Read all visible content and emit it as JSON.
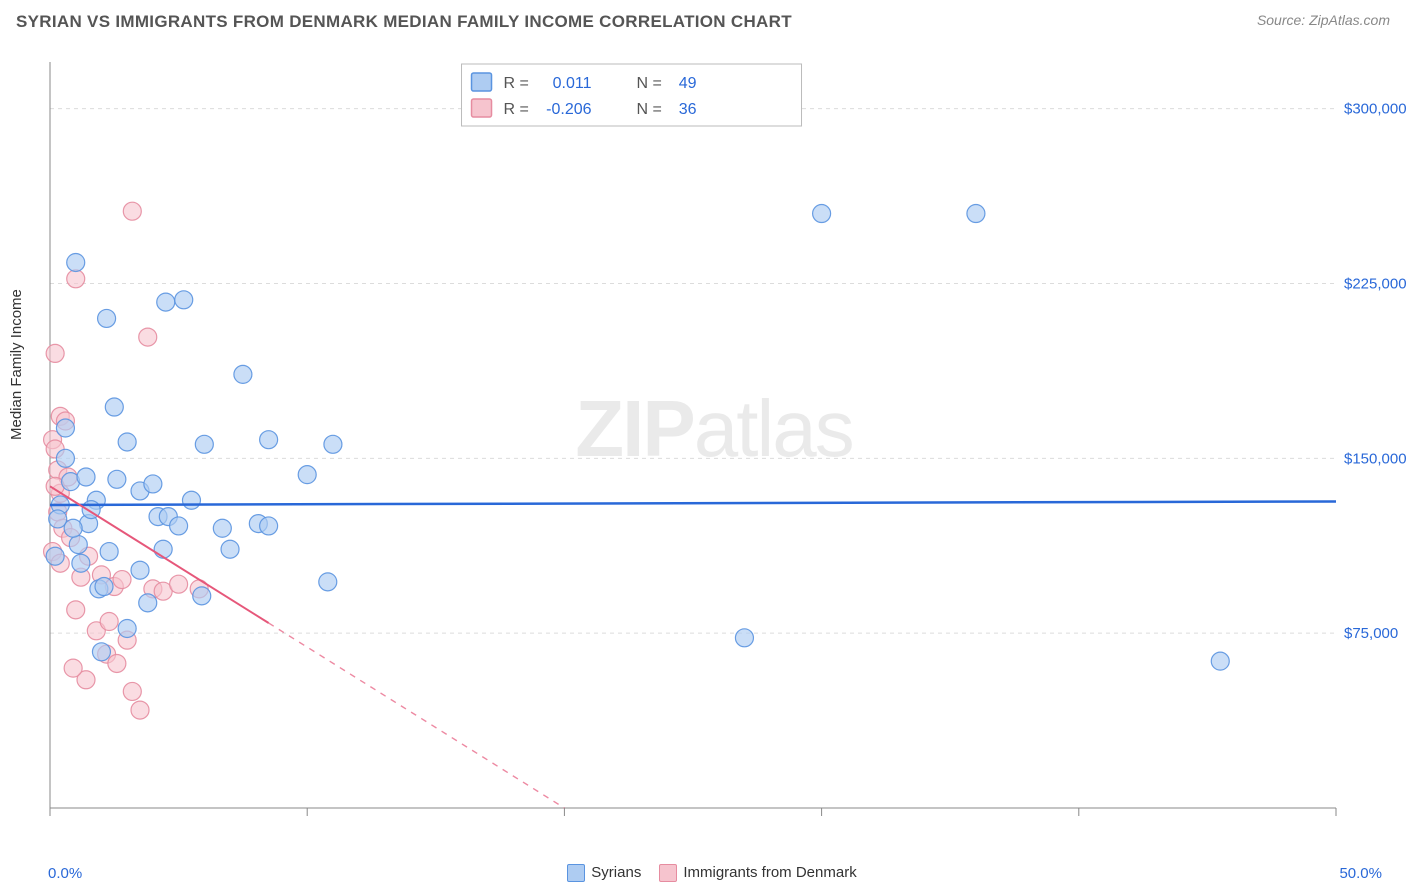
{
  "chart": {
    "type": "scatter",
    "title": "SYRIAN VS IMMIGRANTS FROM DENMARK MEDIAN FAMILY INCOME CORRELATION CHART",
    "source_label": "Source: ZipAtlas.com",
    "y_axis_label": "Median Family Income",
    "watermark_zip": "ZIP",
    "watermark_atlas": "atlas",
    "background_color": "#ffffff",
    "grid_color": "#dcdcdc",
    "axis_color": "#888888",
    "text_color_title": "#555555",
    "text_color_axis": "#333333",
    "tick_label_color": "#2968d8",
    "x_axis": {
      "min": 0.0,
      "max": 50.0,
      "min_label": "0.0%",
      "max_label": "50.0%",
      "major_ticks": [
        0,
        10,
        20,
        30,
        40,
        50
      ]
    },
    "y_axis": {
      "min": 0,
      "max": 320000,
      "ticks": [
        {
          "value": 75000,
          "label": "$75,000"
        },
        {
          "value": 150000,
          "label": "$150,000"
        },
        {
          "value": 225000,
          "label": "$225,000"
        },
        {
          "value": 300000,
          "label": "$300,000"
        }
      ]
    },
    "correlation_legend": {
      "rows": [
        {
          "swatch_fill": "#aeccf2",
          "swatch_stroke": "#5a94e0",
          "r_label": "R =",
          "r_value": "0.011",
          "n_label": "N =",
          "n_value": "49"
        },
        {
          "swatch_fill": "#f6c4ce",
          "swatch_stroke": "#e68ca0",
          "r_label": "R =",
          "r_value": "-0.206",
          "n_label": "N =",
          "n_value": "36"
        }
      ],
      "r_color": "#2968d8",
      "n_color": "#2968d8",
      "label_color": "#555555"
    },
    "bottom_legend": [
      {
        "swatch_fill": "#aeccf2",
        "swatch_stroke": "#5a94e0",
        "label": "Syrians"
      },
      {
        "swatch_fill": "#f6c4ce",
        "swatch_stroke": "#e68ca0",
        "label": "Immigrants from Denmark"
      }
    ],
    "series": [
      {
        "name": "Syrians",
        "marker_fill": "#aeccf2",
        "marker_stroke": "#5a94e0",
        "marker_opacity": 0.65,
        "marker_radius": 9,
        "trend": {
          "x1": 0,
          "y1": 130000,
          "x2": 50,
          "y2": 131500,
          "stroke": "#2968d8",
          "width": 2.5,
          "solid_until_x": 50
        },
        "points": [
          {
            "x": 1.0,
            "y": 234000
          },
          {
            "x": 2.2,
            "y": 210000
          },
          {
            "x": 0.8,
            "y": 140000
          },
          {
            "x": 1.1,
            "y": 113000
          },
          {
            "x": 2.5,
            "y": 172000
          },
          {
            "x": 4.5,
            "y": 217000
          },
          {
            "x": 5.2,
            "y": 218000
          },
          {
            "x": 3.0,
            "y": 157000
          },
          {
            "x": 3.5,
            "y": 136000
          },
          {
            "x": 4.2,
            "y": 125000
          },
          {
            "x": 4.6,
            "y": 125000
          },
          {
            "x": 4.4,
            "y": 111000
          },
          {
            "x": 5.0,
            "y": 121000
          },
          {
            "x": 3.8,
            "y": 88000
          },
          {
            "x": 1.9,
            "y": 94000
          },
          {
            "x": 2.0,
            "y": 67000
          },
          {
            "x": 0.6,
            "y": 163000
          },
          {
            "x": 0.4,
            "y": 130000
          },
          {
            "x": 0.2,
            "y": 108000
          },
          {
            "x": 0.3,
            "y": 124000
          },
          {
            "x": 1.4,
            "y": 142000
          },
          {
            "x": 1.8,
            "y": 132000
          },
          {
            "x": 2.6,
            "y": 141000
          },
          {
            "x": 6.0,
            "y": 156000
          },
          {
            "x": 6.7,
            "y": 120000
          },
          {
            "x": 7.5,
            "y": 186000
          },
          {
            "x": 8.5,
            "y": 158000
          },
          {
            "x": 10.0,
            "y": 143000
          },
          {
            "x": 11.0,
            "y": 156000
          },
          {
            "x": 10.8,
            "y": 97000
          },
          {
            "x": 8.1,
            "y": 122000
          },
          {
            "x": 8.5,
            "y": 121000
          },
          {
            "x": 7.0,
            "y": 111000
          },
          {
            "x": 5.9,
            "y": 91000
          },
          {
            "x": 3.5,
            "y": 102000
          },
          {
            "x": 2.3,
            "y": 110000
          },
          {
            "x": 1.5,
            "y": 122000
          },
          {
            "x": 36.0,
            "y": 255000
          },
          {
            "x": 30.0,
            "y": 255000
          },
          {
            "x": 27.0,
            "y": 73000
          },
          {
            "x": 45.5,
            "y": 63000
          },
          {
            "x": 1.2,
            "y": 105000
          },
          {
            "x": 0.9,
            "y": 120000
          },
          {
            "x": 2.1,
            "y": 95000
          },
          {
            "x": 0.6,
            "y": 150000
          },
          {
            "x": 1.6,
            "y": 128000
          },
          {
            "x": 4.0,
            "y": 139000
          },
          {
            "x": 5.5,
            "y": 132000
          },
          {
            "x": 3.0,
            "y": 77000
          }
        ]
      },
      {
        "name": "Immigrants from Denmark",
        "marker_fill": "#f6c4ce",
        "marker_stroke": "#e68ca0",
        "marker_opacity": 0.6,
        "marker_radius": 9,
        "trend": {
          "x1": 0,
          "y1": 138000,
          "x2": 20,
          "y2": 0,
          "stroke": "#e6577a",
          "width": 2,
          "solid_until_x": 8.5
        },
        "points": [
          {
            "x": 0.4,
            "y": 168000
          },
          {
            "x": 1.0,
            "y": 227000
          },
          {
            "x": 0.2,
            "y": 195000
          },
          {
            "x": 3.2,
            "y": 256000
          },
          {
            "x": 3.8,
            "y": 202000
          },
          {
            "x": 0.1,
            "y": 158000
          },
          {
            "x": 0.3,
            "y": 145000
          },
          {
            "x": 0.6,
            "y": 166000
          },
          {
            "x": 0.2,
            "y": 154000
          },
          {
            "x": 0.4,
            "y": 135000
          },
          {
            "x": 0.7,
            "y": 142000
          },
          {
            "x": 0.3,
            "y": 127000
          },
          {
            "x": 0.5,
            "y": 120000
          },
          {
            "x": 0.8,
            "y": 116000
          },
          {
            "x": 0.1,
            "y": 110000
          },
          {
            "x": 0.4,
            "y": 105000
          },
          {
            "x": 1.2,
            "y": 99000
          },
          {
            "x": 1.5,
            "y": 108000
          },
          {
            "x": 2.0,
            "y": 100000
          },
          {
            "x": 2.5,
            "y": 95000
          },
          {
            "x": 2.8,
            "y": 98000
          },
          {
            "x": 2.2,
            "y": 66000
          },
          {
            "x": 3.0,
            "y": 72000
          },
          {
            "x": 3.2,
            "y": 50000
          },
          {
            "x": 3.5,
            "y": 42000
          },
          {
            "x": 4.0,
            "y": 94000
          },
          {
            "x": 4.4,
            "y": 93000
          },
          {
            "x": 5.0,
            "y": 96000
          },
          {
            "x": 5.8,
            "y": 94000
          },
          {
            "x": 1.8,
            "y": 76000
          },
          {
            "x": 1.0,
            "y": 85000
          },
          {
            "x": 2.3,
            "y": 80000
          },
          {
            "x": 2.6,
            "y": 62000
          },
          {
            "x": 1.4,
            "y": 55000
          },
          {
            "x": 0.9,
            "y": 60000
          },
          {
            "x": 0.2,
            "y": 138000
          }
        ]
      }
    ]
  }
}
